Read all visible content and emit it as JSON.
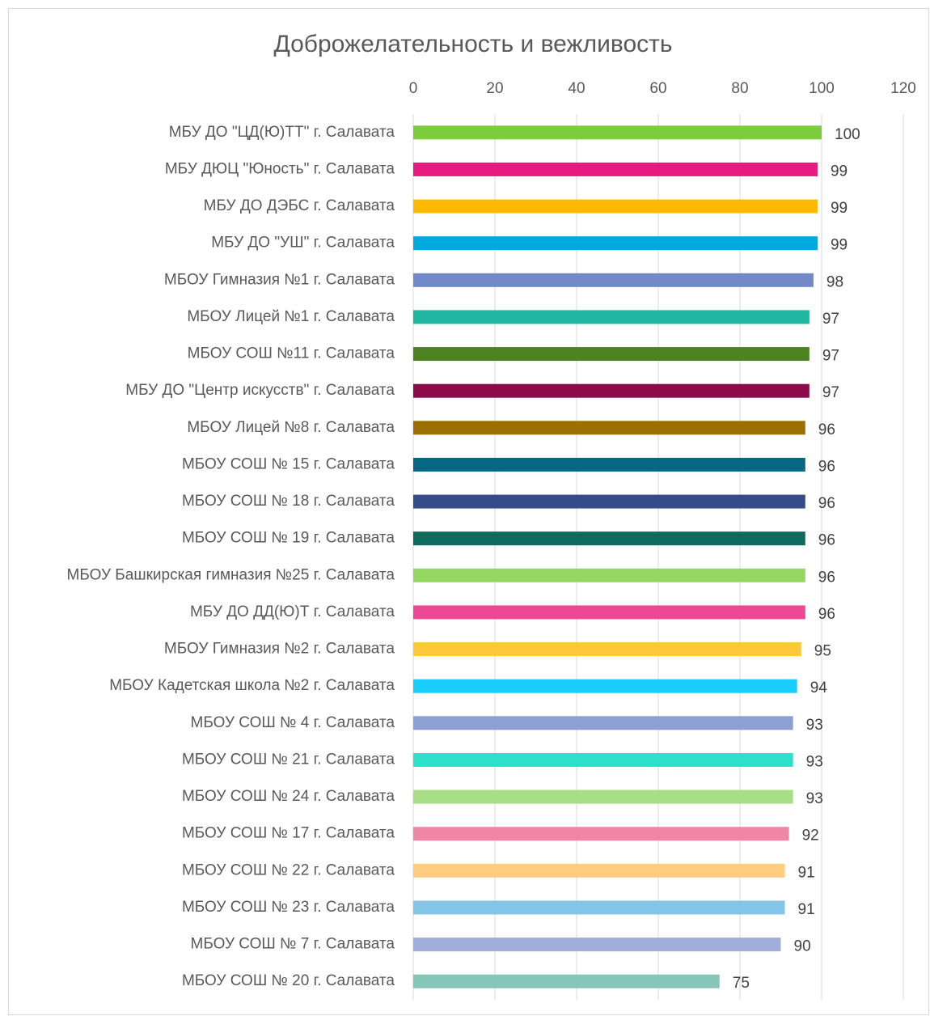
{
  "chart_data": {
    "type": "bar",
    "orientation": "horizontal",
    "title": "Доброжелательность и вежливость",
    "categories": [
      "МБУ ДО \"ЦД(Ю)ТТ\" г. Салавата",
      "МБУ ДЮЦ \"Юность\" г. Салавата",
      "МБУ ДО ДЭБС г. Салавата",
      "МБУ ДО \"УШ\" г. Салавата",
      "МБОУ Гимназия №1 г. Салавата",
      "МБОУ Лицей №1 г. Салавата",
      "МБОУ СОШ №11 г. Салавата",
      "МБУ ДО \"Центр искусств\" г. Салавата",
      "МБОУ Лицей №8 г. Салавата",
      "МБОУ СОШ № 15 г. Салавата",
      "МБОУ СОШ № 18 г. Салавата",
      "МБОУ СОШ № 19 г. Салавата",
      "МБОУ Башкирская гимназия №25 г. Салавата",
      "МБУ ДО ДД(Ю)Т г. Салавата",
      "МБОУ Гимназия №2 г. Салавата",
      "МБОУ Кадетская школа №2 г. Салавата",
      "МБОУ СОШ № 4 г. Салавата",
      "МБОУ СОШ № 21 г. Салавата",
      "МБОУ СОШ № 24 г. Салавата",
      "МБОУ СОШ № 17 г. Салавата",
      "МБОУ СОШ № 22 г. Салавата",
      "МБОУ СОШ № 23 г. Салавата",
      "МБОУ СОШ № 7 г. Салавата",
      "МБОУ СОШ № 20 г. Салавата"
    ],
    "values": [
      100,
      99,
      99,
      99,
      98,
      97,
      97,
      97,
      96,
      96,
      96,
      96,
      96,
      96,
      95,
      94,
      93,
      93,
      93,
      92,
      91,
      91,
      90,
      75
    ],
    "colors": [
      "#7dcc3d",
      "#e8197f",
      "#ffb900",
      "#00aadd",
      "#7189c8",
      "#1fb5a0",
      "#4d8223",
      "#8c0c4a",
      "#9b7000",
      "#076682",
      "#354c8a",
      "#0e6a5c",
      "#94d65f",
      "#ec4894",
      "#ffc83a",
      "#1acfff",
      "#8e9fd3",
      "#2ee0cb",
      "#a8de86",
      "#f085a6",
      "#ffcc80",
      "#84c4e6",
      "#a1addb",
      "#85c6b8"
    ],
    "xlim": [
      0,
      120
    ],
    "xticks": [
      0,
      20,
      40,
      60,
      80,
      100,
      120
    ],
    "grid": true
  }
}
